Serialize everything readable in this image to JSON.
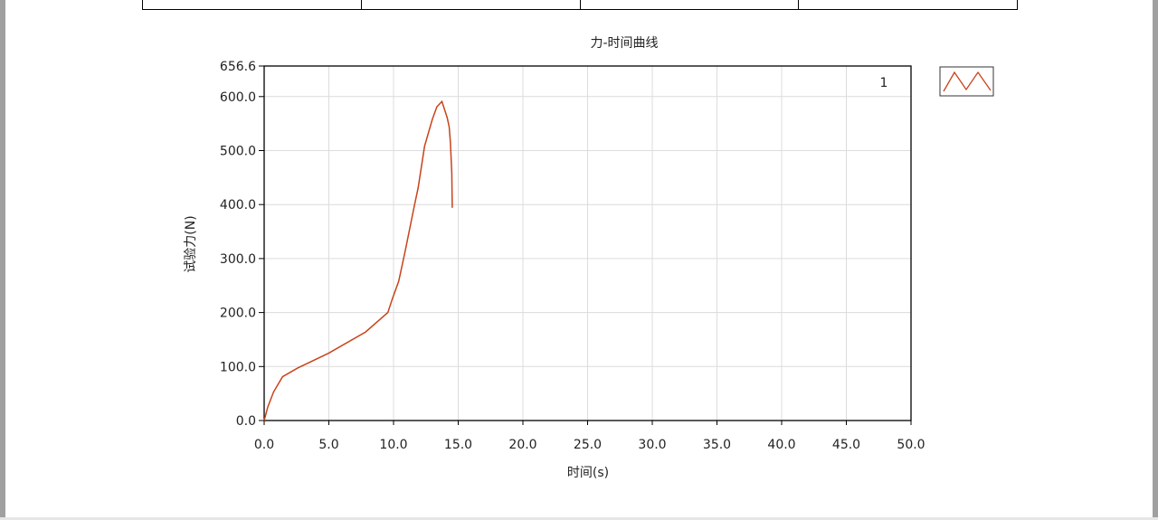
{
  "chart_data": {
    "type": "line",
    "title": "力-时间曲线",
    "xlabel": "时间(s)",
    "ylabel": "试验力(N)",
    "xlim": [
      0,
      50
    ],
    "ylim": [
      0,
      656.6
    ],
    "xticks": [
      "0.0",
      "5.0",
      "10.0",
      "15.0",
      "20.0",
      "25.0",
      "30.0",
      "35.0",
      "40.0",
      "45.0",
      "50.0"
    ],
    "yticks": [
      "0.0",
      "100.0",
      "200.0",
      "300.0",
      "400.0",
      "500.0",
      "600.0",
      "656.6"
    ],
    "grid": true,
    "plot_label": "1",
    "legend_placement": "top-right",
    "series": [
      {
        "color": "#c8431a",
        "x": [
          0,
          0.28,
          0.73,
          1.42,
          2.57,
          5.0,
          7.84,
          9.56,
          9.9,
          10.4,
          10.9,
          11.6,
          11.9,
          12.4,
          13.0,
          13.35,
          13.74,
          14.15,
          14.3,
          14.4,
          14.5,
          14.54
        ],
        "y": [
          0,
          25,
          53,
          81,
          97,
          125,
          164,
          200,
          225,
          258,
          314,
          397,
          431,
          508,
          558,
          581,
          591,
          561,
          544,
          514,
          458,
          394
        ]
      }
    ]
  }
}
